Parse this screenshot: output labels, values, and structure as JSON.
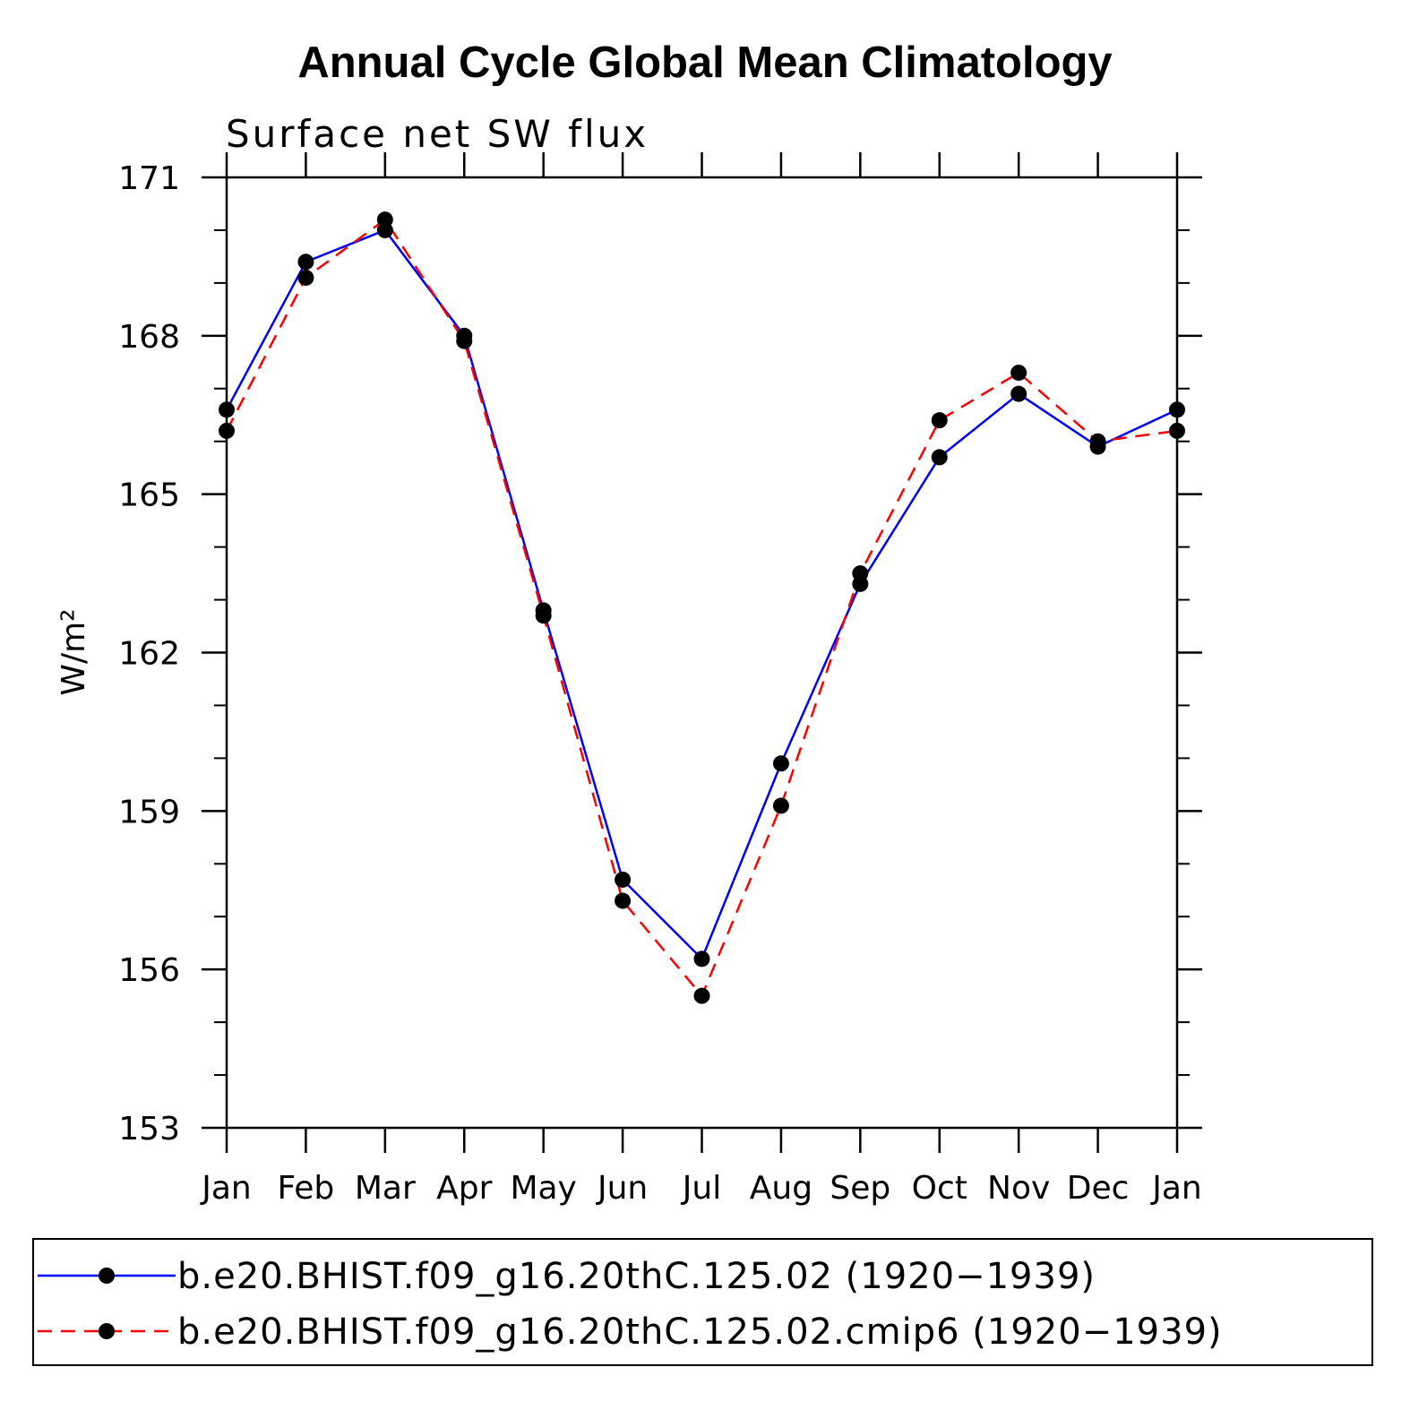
{
  "chart_data": {
    "type": "line",
    "title": "Annual Cycle Global Mean Climatology",
    "subtitle": "Surface net SW flux",
    "ylabel": "W/m²",
    "xlabel": "",
    "categories": [
      "Jan",
      "Feb",
      "Mar",
      "Apr",
      "May",
      "Jun",
      "Jul",
      "Aug",
      "Sep",
      "Oct",
      "Nov",
      "Dec",
      "Jan"
    ],
    "ylim": [
      153,
      171
    ],
    "yticks": [
      153,
      156,
      159,
      162,
      165,
      168,
      171
    ],
    "ytick_labels": [
      "153",
      "156",
      "159",
      "162",
      "165",
      "168",
      "171"
    ],
    "y_minor_step": 1,
    "grid": false,
    "legend_position": "bottom",
    "series": [
      {
        "name": "b.e20.BHIST.f09_g16.20thC.125.02 (1920−1939)",
        "color": "#0000ff",
        "dash": "solid",
        "values": [
          166.6,
          169.4,
          170.0,
          168.0,
          162.8,
          157.7,
          156.2,
          159.9,
          163.3,
          165.7,
          166.9,
          165.9,
          166.6
        ]
      },
      {
        "name": "b.e20.BHIST.f09_g16.20thC.125.02.cmip6 (1920−1939)",
        "color": "#ff0000",
        "dash": "dashed",
        "values": [
          166.2,
          169.1,
          170.2,
          167.9,
          162.7,
          157.3,
          155.5,
          159.1,
          163.5,
          166.4,
          167.3,
          166.0,
          166.2
        ]
      }
    ]
  }
}
